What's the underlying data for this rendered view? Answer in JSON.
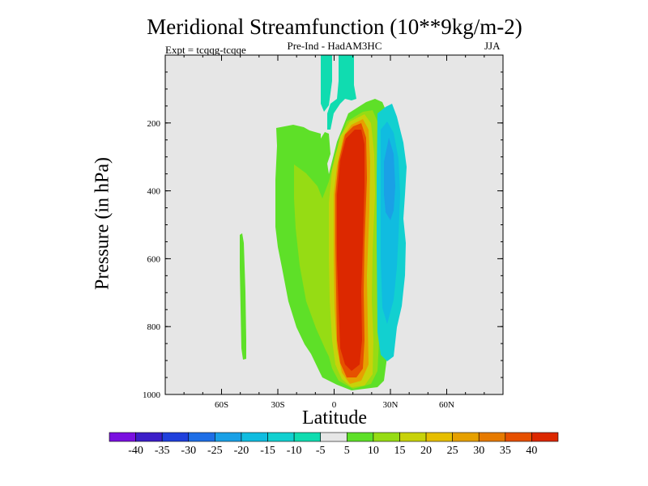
{
  "chart_data": {
    "type": "heatmap",
    "title": "Meridional Streamfunction (10**9kg/m-2)",
    "subtitle": "Pre-Ind - HadAM3HC",
    "left_label": "Expt = tcqqg-tcqqe",
    "right_label": "JJA",
    "xlabel": "Latitude",
    "ylabel": "Pressure (in hPa)",
    "xlim": [
      -90,
      90
    ],
    "ylim": [
      1000,
      0
    ],
    "x_ticks": [
      {
        "value": -60,
        "label": "60S"
      },
      {
        "value": -30,
        "label": "30S"
      },
      {
        "value": 0,
        "label": "0"
      },
      {
        "value": 30,
        "label": "30N"
      },
      {
        "value": 60,
        "label": "60N"
      }
    ],
    "y_ticks": [
      {
        "value": 200,
        "label": "200"
      },
      {
        "value": 400,
        "label": "400"
      },
      {
        "value": 600,
        "label": "600"
      },
      {
        "value": 800,
        "label": "800"
      },
      {
        "value": 1000,
        "label": "1000"
      }
    ],
    "contour_levels": [
      -40,
      -35,
      -30,
      -25,
      -20,
      -15,
      -10,
      -5,
      5,
      10,
      15,
      20,
      25,
      30,
      35,
      40
    ],
    "colors": [
      "#7a10e0",
      "#3c1ec8",
      "#2040dc",
      "#1e6ee6",
      "#1aa0e6",
      "#10bce0",
      "#12d0d0",
      "#10dcb0",
      "#e6e6e6",
      "#5ee028",
      "#96dc14",
      "#c8d20a",
      "#e6be00",
      "#e6a000",
      "#e67a00",
      "#e65000",
      "#dc2800"
    ],
    "background": "#e6e6e6",
    "features": [
      {
        "name": "nh-hadley-cell",
        "level": 40,
        "lat_range": [
          -4,
          22
        ],
        "p_range": [
          130,
          985
        ]
      },
      {
        "name": "positive-cell-extension",
        "level": 10,
        "lat_range": [
          -30,
          25
        ],
        "p_range": [
          135,
          985
        ]
      },
      {
        "name": "negative-cell",
        "level": -15,
        "lat_range": [
          25,
          40
        ],
        "p_range": [
          140,
          955
        ]
      },
      {
        "name": "stratospheric-negative",
        "level": -5,
        "lat_range": [
          -7,
          13
        ],
        "p_range": [
          0,
          160
        ]
      },
      {
        "name": "sh-weak-positive",
        "level": 5,
        "lat_range": [
          -50,
          -47
        ],
        "p_range": [
          525,
          905
        ]
      }
    ]
  }
}
